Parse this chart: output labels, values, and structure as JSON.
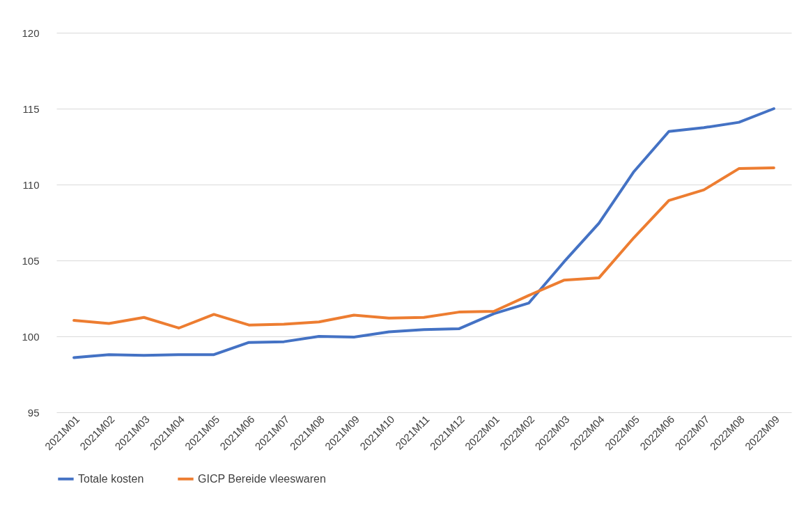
{
  "chart_data": {
    "type": "line",
    "categories": [
      "2021M01",
      "2021M02",
      "2021M03",
      "2021M04",
      "2021M05",
      "2021M06",
      "2021M07",
      "2021M08",
      "2021M09",
      "2021M10",
      "2021M11",
      "2021M12",
      "2022M01",
      "2022M02",
      "2022M03",
      "2022M04",
      "2022M05",
      "2022M06",
      "2022M07",
      "2022M08",
      "2022M09"
    ],
    "series": [
      {
        "name": "Totale kosten",
        "color": "#4472c4",
        "values": [
          98.6,
          98.8,
          98.75,
          98.8,
          98.8,
          99.6,
          99.65,
          100.0,
          99.95,
          100.3,
          100.45,
          100.5,
          101.5,
          102.2,
          104.9,
          107.45,
          110.85,
          113.5,
          113.75,
          114.1,
          115.0
        ]
      },
      {
        "name": "GICP Bereide vleeswaren",
        "color": "#ed7d31",
        "values": [
          101.05,
          100.85,
          101.25,
          100.55,
          101.45,
          100.75,
          100.8,
          100.95,
          101.4,
          101.2,
          101.25,
          101.6,
          101.65,
          102.7,
          103.7,
          103.85,
          106.5,
          108.95,
          109.65,
          111.05,
          111.1
        ]
      }
    ],
    "ylim": [
      95,
      120
    ],
    "yticks": [
      95,
      100,
      105,
      110,
      115,
      120
    ],
    "grid": "y",
    "legend": "bottom",
    "line_style": "solid"
  }
}
